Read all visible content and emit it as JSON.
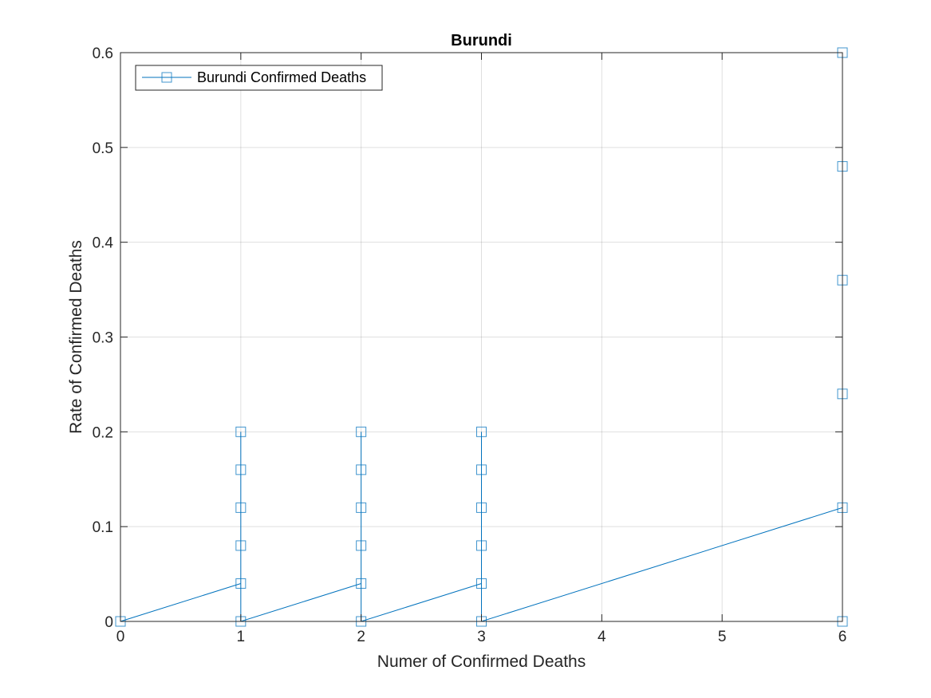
{
  "chart_data": {
    "type": "line",
    "title": "Burundi",
    "xlabel": "Numer of Confirmed Deaths",
    "ylabel": "Rate of Confirmed Deaths",
    "xlim": [
      0,
      6
    ],
    "ylim": [
      0,
      0.6
    ],
    "xticks": [
      0,
      1,
      2,
      3,
      4,
      5,
      6
    ],
    "xtick_labels": [
      "0",
      "1",
      "2",
      "3",
      "4",
      "5",
      "6"
    ],
    "yticks": [
      0,
      0.1,
      0.2,
      0.3,
      0.4,
      0.5,
      0.6
    ],
    "ytick_labels": [
      "0",
      "0.1",
      "0.2",
      "0.3",
      "0.4",
      "0.5",
      "0.6"
    ],
    "grid": true,
    "legend_position": "top-left",
    "series": [
      {
        "name": "Burundi Confirmed Deaths",
        "color": "#0072BD",
        "marker": "square",
        "x": [
          0,
          1,
          1,
          1,
          1,
          1,
          1,
          2,
          2,
          2,
          2,
          2,
          2,
          3,
          3,
          3,
          3,
          3,
          3,
          6,
          6,
          6,
          6,
          6,
          6
        ],
        "y": [
          0,
          0.04,
          0.08,
          0.12,
          0.16,
          0.2,
          0,
          0.04,
          0.08,
          0.12,
          0.16,
          0.2,
          0,
          0.04,
          0.08,
          0.12,
          0.16,
          0.2,
          0,
          0.12,
          0.24,
          0.36,
          0.48,
          0.6,
          0
        ]
      }
    ]
  }
}
